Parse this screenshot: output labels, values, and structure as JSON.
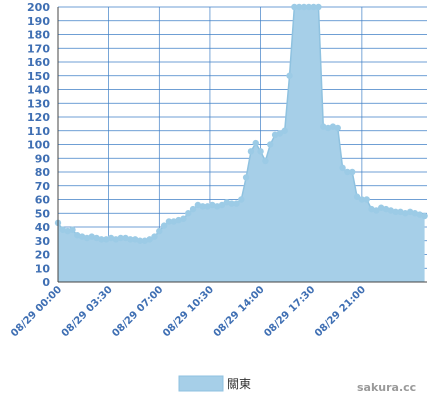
{
  "colors": {
    "fill": "#a6cfe8",
    "line": "#8fc2e0",
    "marker": "#9ccbe6",
    "grid": "#3f7fc6",
    "axis": "#444444",
    "tick_text": "#3f6fb3"
  },
  "legend": {
    "label": "關東",
    "placement": "bottom-center"
  },
  "watermark": "sakura.cc",
  "chart_data": {
    "type": "area",
    "title": "",
    "xlabel": "",
    "ylabel": "",
    "ylim": [
      0,
      200
    ],
    "y_ticks": [
      0,
      10,
      20,
      30,
      40,
      50,
      60,
      70,
      80,
      90,
      100,
      110,
      120,
      130,
      140,
      150,
      160,
      170,
      180,
      190,
      200
    ],
    "x_range": [
      "08/29 00:00",
      "08/30 01:30"
    ],
    "x_ticks": [
      "08/29 00:00",
      "08/29 03:30",
      "08/29 07:00",
      "08/29 10:30",
      "08/29 14:00",
      "08/29 17:30",
      "08/29 21:00"
    ],
    "grid": true,
    "series": [
      {
        "name": "關東",
        "points": [
          [
            "08/29 00:00",
            43
          ],
          [
            "08/29 00:20",
            38
          ],
          [
            "08/29 00:40",
            37
          ],
          [
            "08/29 01:00",
            38
          ],
          [
            "08/29 01:20",
            34
          ],
          [
            "08/29 01:40",
            33
          ],
          [
            "08/29 02:00",
            32
          ],
          [
            "08/29 02:20",
            33
          ],
          [
            "08/29 02:40",
            32
          ],
          [
            "08/29 03:00",
            31
          ],
          [
            "08/29 03:20",
            31
          ],
          [
            "08/29 03:40",
            32
          ],
          [
            "08/29 04:00",
            31
          ],
          [
            "08/29 04:20",
            32
          ],
          [
            "08/29 04:40",
            32
          ],
          [
            "08/29 05:00",
            31
          ],
          [
            "08/29 05:20",
            31
          ],
          [
            "08/29 05:40",
            30
          ],
          [
            "08/29 06:00",
            30
          ],
          [
            "08/29 06:20",
            31
          ],
          [
            "08/29 06:40",
            33
          ],
          [
            "08/29 07:00",
            37
          ],
          [
            "08/29 07:20",
            41
          ],
          [
            "08/29 07:40",
            44
          ],
          [
            "08/29 08:00",
            44
          ],
          [
            "08/29 08:20",
            45
          ],
          [
            "08/29 08:40",
            46
          ],
          [
            "08/29 09:00",
            50
          ],
          [
            "08/29 09:20",
            53
          ],
          [
            "08/29 09:40",
            56
          ],
          [
            "08/29 10:00",
            55
          ],
          [
            "08/29 10:20",
            55
          ],
          [
            "08/29 10:40",
            56
          ],
          [
            "08/29 11:00",
            55
          ],
          [
            "08/29 11:20",
            56
          ],
          [
            "08/29 11:40",
            58
          ],
          [
            "08/29 12:00",
            57
          ],
          [
            "08/29 12:20",
            57
          ],
          [
            "08/29 12:40",
            60
          ],
          [
            "08/29 13:00",
            76
          ],
          [
            "08/29 13:20",
            95
          ],
          [
            "08/29 13:40",
            101
          ],
          [
            "08/29 14:00",
            95
          ],
          [
            "08/29 14:20",
            88
          ],
          [
            "08/29 14:40",
            100
          ],
          [
            "08/29 15:00",
            107
          ],
          [
            "08/29 15:20",
            108
          ],
          [
            "08/29 15:40",
            110
          ],
          [
            "08/29 16:00",
            150
          ],
          [
            "08/29 16:20",
            201
          ],
          [
            "08/29 16:40",
            201
          ],
          [
            "08/29 17:00",
            201
          ],
          [
            "08/29 17:20",
            201
          ],
          [
            "08/29 17:40",
            201
          ],
          [
            "08/29 18:00",
            201
          ],
          [
            "08/29 18:20",
            113
          ],
          [
            "08/29 18:40",
            112
          ],
          [
            "08/29 19:00",
            113
          ],
          [
            "08/29 19:20",
            112
          ],
          [
            "08/29 19:40",
            83
          ],
          [
            "08/29 20:00",
            80
          ],
          [
            "08/29 20:20",
            80
          ],
          [
            "08/29 20:40",
            62
          ],
          [
            "08/29 21:00",
            60
          ],
          [
            "08/29 21:20",
            60
          ],
          [
            "08/29 21:40",
            53
          ],
          [
            "08/29 22:00",
            52
          ],
          [
            "08/29 22:20",
            54
          ],
          [
            "08/29 22:40",
            53
          ],
          [
            "08/29 23:00",
            52
          ],
          [
            "08/29 23:20",
            51
          ],
          [
            "08/29 23:40",
            51
          ],
          [
            "08/30 00:00",
            50
          ],
          [
            "08/30 00:20",
            51
          ],
          [
            "08/30 00:40",
            50
          ],
          [
            "08/30 01:00",
            49
          ],
          [
            "08/30 01:20",
            48
          ]
        ]
      }
    ]
  }
}
